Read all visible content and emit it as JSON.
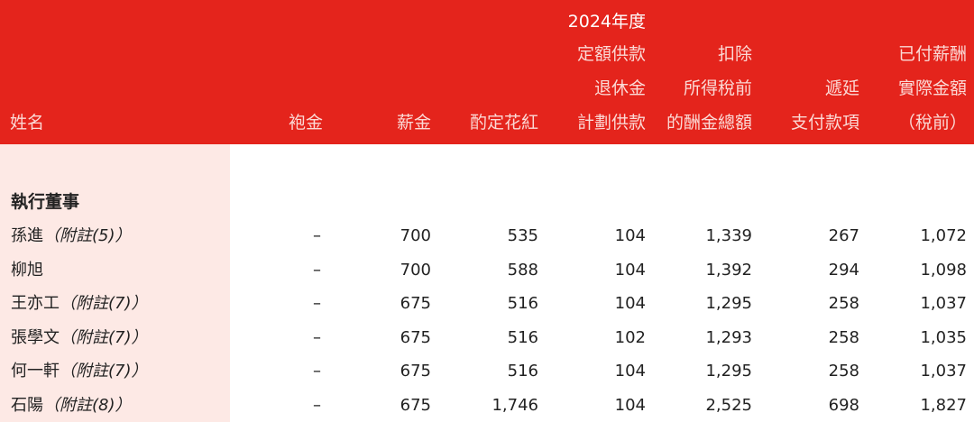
{
  "header": {
    "year": "2024年度",
    "columns": [
      {
        "lines": [
          "姓名"
        ]
      },
      {
        "lines": [
          "袍金"
        ]
      },
      {
        "lines": [
          "薪金"
        ]
      },
      {
        "lines": [
          "酌定花紅"
        ]
      },
      {
        "lines": [
          "定額供款",
          "退休金",
          "計劃供款"
        ]
      },
      {
        "lines": [
          "扣除",
          "所得稅前",
          "的酬金總額"
        ]
      },
      {
        "lines": [
          "遞延",
          "支付款項"
        ]
      },
      {
        "lines": [
          "已付薪酬",
          "實際金額",
          "（稅前）"
        ]
      }
    ]
  },
  "section_title": "執行董事",
  "rows": [
    {
      "name": "孫進",
      "note": "（附註(5)）",
      "values": [
        "–",
        "700",
        "535",
        "104",
        "1,339",
        "267",
        "1,072"
      ]
    },
    {
      "name": "柳旭",
      "note": "",
      "values": [
        "–",
        "700",
        "588",
        "104",
        "1,392",
        "294",
        "1,098"
      ]
    },
    {
      "name": "王亦工",
      "note": "（附註(7)）",
      "values": [
        "–",
        "675",
        "516",
        "104",
        "1,295",
        "258",
        "1,037"
      ]
    },
    {
      "name": "張學文",
      "note": "（附註(7)）",
      "values": [
        "–",
        "675",
        "516",
        "102",
        "1,293",
        "258",
        "1,035"
      ]
    },
    {
      "name": "何一軒",
      "note": "（附註(7)）",
      "values": [
        "–",
        "675",
        "516",
        "104",
        "1,295",
        "258",
        "1,037"
      ]
    },
    {
      "name": "石陽",
      "note": "（附註(8)）",
      "values": [
        "–",
        "675",
        "1,746",
        "104",
        "2,525",
        "698",
        "1,827"
      ]
    }
  ],
  "colors": {
    "header_bg": "#e4241c",
    "name_column_bg": "#fde9e5"
  }
}
